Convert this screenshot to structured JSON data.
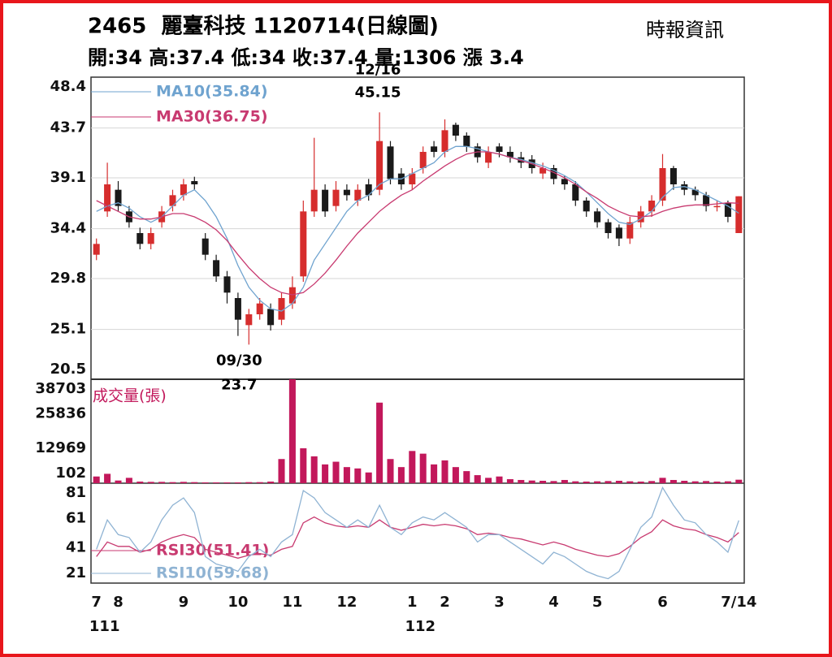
{
  "header": {
    "title": "2465  麗臺科技 1120714(日線圖)",
    "source": "時報資訊",
    "quote": "開:34 高:37.4 低:34 收:37.4 量:1306 漲 3.4"
  },
  "chart_data": [
    {
      "type": "candlestick",
      "open": [
        32,
        36,
        38,
        36,
        34,
        33,
        35,
        36.5,
        37.5,
        38.8,
        33.5,
        31.5,
        30,
        28,
        25.5,
        26.5,
        27,
        26,
        27.5,
        30,
        36,
        38,
        36.5,
        38,
        37,
        38.5,
        38,
        42,
        39.5,
        38.5,
        40,
        42,
        41.5,
        44,
        43,
        42,
        40.5,
        42,
        41.5,
        41,
        40.8,
        39.5,
        40,
        39,
        38.5,
        37,
        36,
        35,
        34.5,
        33.5,
        35,
        36,
        37,
        40,
        38.5,
        38,
        37.5,
        36.5,
        36.8,
        34
      ],
      "high": [
        33.5,
        40.5,
        38.8,
        36.5,
        34.5,
        34.5,
        36.5,
        38,
        39,
        39.2,
        34,
        32,
        30.5,
        28.5,
        27,
        28,
        27.5,
        28.5,
        30,
        37,
        42.8,
        38.5,
        38.8,
        38.5,
        38.5,
        39,
        45.15,
        42.5,
        40,
        40,
        42,
        42.5,
        44.5,
        44.2,
        43.3,
        42.3,
        42,
        42.3,
        42,
        41.5,
        41.2,
        40.5,
        40.3,
        39.3,
        38.8,
        37.3,
        36.3,
        35.3,
        34.8,
        35.5,
        36.5,
        37.5,
        41.3,
        40.2,
        38.8,
        38.3,
        37.8,
        37,
        37,
        37.4
      ],
      "low": [
        31.5,
        35.5,
        36,
        34.5,
        32.5,
        32.5,
        34.5,
        36,
        37,
        38,
        31.5,
        29.5,
        27.5,
        24.5,
        23.7,
        26,
        25,
        25.5,
        27,
        29.5,
        35.5,
        35.5,
        36,
        37,
        36.5,
        37,
        37.5,
        38.5,
        38,
        38,
        39.5,
        41,
        41,
        42.5,
        41.5,
        40.5,
        40,
        41,
        40.5,
        40,
        39.5,
        39,
        38.5,
        38,
        36.5,
        35.5,
        34.5,
        33.5,
        32.8,
        33,
        34.5,
        35.5,
        36.5,
        38,
        37.5,
        37,
        36,
        36,
        35,
        34
      ],
      "close": [
        33,
        38.5,
        36.5,
        35,
        33,
        34,
        36,
        37.5,
        38.5,
        38.5,
        32,
        30,
        28.5,
        26,
        26.5,
        27.5,
        25.5,
        28,
        29,
        36,
        38,
        36,
        38,
        37.5,
        38,
        37.5,
        42.5,
        39,
        38.5,
        39.5,
        41.5,
        41.5,
        43.5,
        43,
        42,
        41,
        41.5,
        41.5,
        41,
        40.5,
        40,
        40,
        39,
        38.5,
        37,
        36,
        35,
        34,
        33.5,
        35,
        36,
        37,
        40,
        38.5,
        38,
        37.5,
        36.5,
        36.5,
        35.5,
        37.4
      ],
      "up_color": "#d62d2d",
      "down_color": "#1a1a1a",
      "series": [
        {
          "name": "MA10(35.84)",
          "color": "#6fa3cf",
          "values": [
            36,
            36.5,
            36.8,
            36.3,
            35.5,
            35,
            35.5,
            36.5,
            37.5,
            38,
            37,
            35.5,
            33.5,
            31,
            29,
            27.8,
            27,
            26.8,
            27.5,
            29,
            31.5,
            33,
            34.5,
            36,
            37,
            37.5,
            38.5,
            39,
            39,
            39.5,
            40,
            40.5,
            41.5,
            42,
            42,
            41.8,
            41.5,
            41.3,
            41,
            40.8,
            40.5,
            40.2,
            39.8,
            39.3,
            38.7,
            37.8,
            36.8,
            35.8,
            35,
            34.8,
            35.3,
            36,
            37.3,
            38.2,
            38.3,
            38,
            37.5,
            37,
            36.5,
            35.84
          ]
        },
        {
          "name": "MA30(36.75)",
          "color": "#c83a70",
          "values": [
            37,
            36.5,
            36,
            35.5,
            35.3,
            35.3,
            35.5,
            35.8,
            35.8,
            35.5,
            35,
            34.3,
            33.3,
            32,
            30.8,
            29.8,
            29,
            28.5,
            28.3,
            28.5,
            29.3,
            30.3,
            31.5,
            32.8,
            34,
            35,
            36,
            36.8,
            37.5,
            38,
            38.8,
            39.5,
            40.2,
            40.8,
            41.3,
            41.5,
            41.5,
            41.3,
            41,
            40.7,
            40.4,
            40,
            39.6,
            39.1,
            38.5,
            37.8,
            37.2,
            36.5,
            36,
            35.6,
            35.5,
            35.6,
            36,
            36.3,
            36.5,
            36.6,
            36.6,
            36.7,
            36.8,
            36.75
          ]
        }
      ],
      "annotations": [
        {
          "label": "12/16",
          "value": 45.15
        },
        {
          "label": "09/30",
          "value": 23.7
        }
      ],
      "ylim": [
        20.5,
        48.4
      ],
      "yticks": [
        48.4,
        43.7,
        39.1,
        34.4,
        29.8,
        25.1,
        20.5
      ],
      "grid": true
    },
    {
      "type": "bar",
      "title": "成交量(張)",
      "color": "#c2185b",
      "values": [
        2500,
        3500,
        1000,
        2000,
        600,
        500,
        500,
        400,
        500,
        400,
        300,
        300,
        300,
        300,
        400,
        400,
        600,
        9000,
        38703,
        13000,
        10000,
        7000,
        8000,
        6000,
        5500,
        4000,
        30000,
        9000,
        6000,
        12000,
        11000,
        7000,
        8500,
        6000,
        4500,
        3000,
        2000,
        2500,
        1500,
        1200,
        1000,
        900,
        800,
        1200,
        700,
        600,
        700,
        800,
        900,
        700,
        600,
        800,
        2000,
        1200,
        900,
        700,
        800,
        600,
        700,
        1306
      ],
      "ylim": [
        0,
        38703
      ],
      "yticks": [
        38703,
        25836,
        12969,
        102
      ],
      "grid": false
    },
    {
      "type": "line",
      "series": [
        {
          "name": "RSI30(51.41)",
          "color": "#c83a70",
          "values": [
            35,
            45,
            42,
            42,
            38,
            40,
            45,
            48,
            50,
            48,
            40,
            38,
            36,
            34,
            36,
            37,
            36,
            40,
            42,
            58,
            62,
            58,
            56,
            55,
            56,
            55,
            60,
            55,
            53,
            55,
            57,
            56,
            57,
            56,
            54,
            50,
            51,
            50,
            48,
            47,
            45,
            43,
            45,
            43,
            40,
            38,
            36,
            35,
            37,
            42,
            48,
            52,
            60,
            56,
            54,
            53,
            50,
            48,
            45,
            51.41
          ]
        },
        {
          "name": "RSI10(59.68)",
          "color": "#8fb3d3",
          "values": [
            40,
            60,
            50,
            48,
            38,
            45,
            60,
            70,
            75,
            65,
            35,
            30,
            28,
            25,
            35,
            40,
            35,
            45,
            50,
            80,
            75,
            65,
            60,
            55,
            60,
            55,
            70,
            55,
            50,
            58,
            62,
            60,
            65,
            60,
            55,
            45,
            50,
            50,
            45,
            40,
            35,
            30,
            38,
            35,
            30,
            25,
            22,
            20,
            25,
            40,
            55,
            62,
            82,
            70,
            60,
            58,
            50,
            45,
            38,
            59.68
          ]
        }
      ],
      "categories": [
        "7",
        null,
        "8",
        null,
        null,
        null,
        null,
        null,
        "9",
        null,
        null,
        null,
        null,
        "10",
        null,
        null,
        null,
        null,
        "11",
        null,
        null,
        null,
        null,
        "12",
        null,
        null,
        null,
        null,
        null,
        "1",
        null,
        null,
        "2",
        null,
        null,
        null,
        null,
        "3",
        null,
        null,
        null,
        null,
        "4",
        null,
        null,
        null,
        "5",
        null,
        null,
        null,
        null,
        null,
        "6",
        null,
        null,
        null,
        null,
        null,
        null,
        "7/14"
      ],
      "year_labels": [
        "111",
        null,
        null,
        null,
        null,
        null,
        null,
        null,
        null,
        null,
        null,
        null,
        null,
        null,
        null,
        null,
        null,
        null,
        null,
        null,
        null,
        null,
        null,
        null,
        null,
        null,
        null,
        null,
        null,
        "112",
        null,
        null,
        null,
        null,
        null,
        null,
        null,
        null,
        null,
        null,
        null,
        null,
        null,
        null,
        null,
        null,
        null,
        null,
        null,
        null,
        null,
        null,
        null,
        null,
        null,
        null,
        null,
        null,
        null,
        null
      ],
      "ylim": [
        17,
        85
      ],
      "yticks": [
        81,
        61,
        41,
        21
      ],
      "grid": false
    }
  ]
}
